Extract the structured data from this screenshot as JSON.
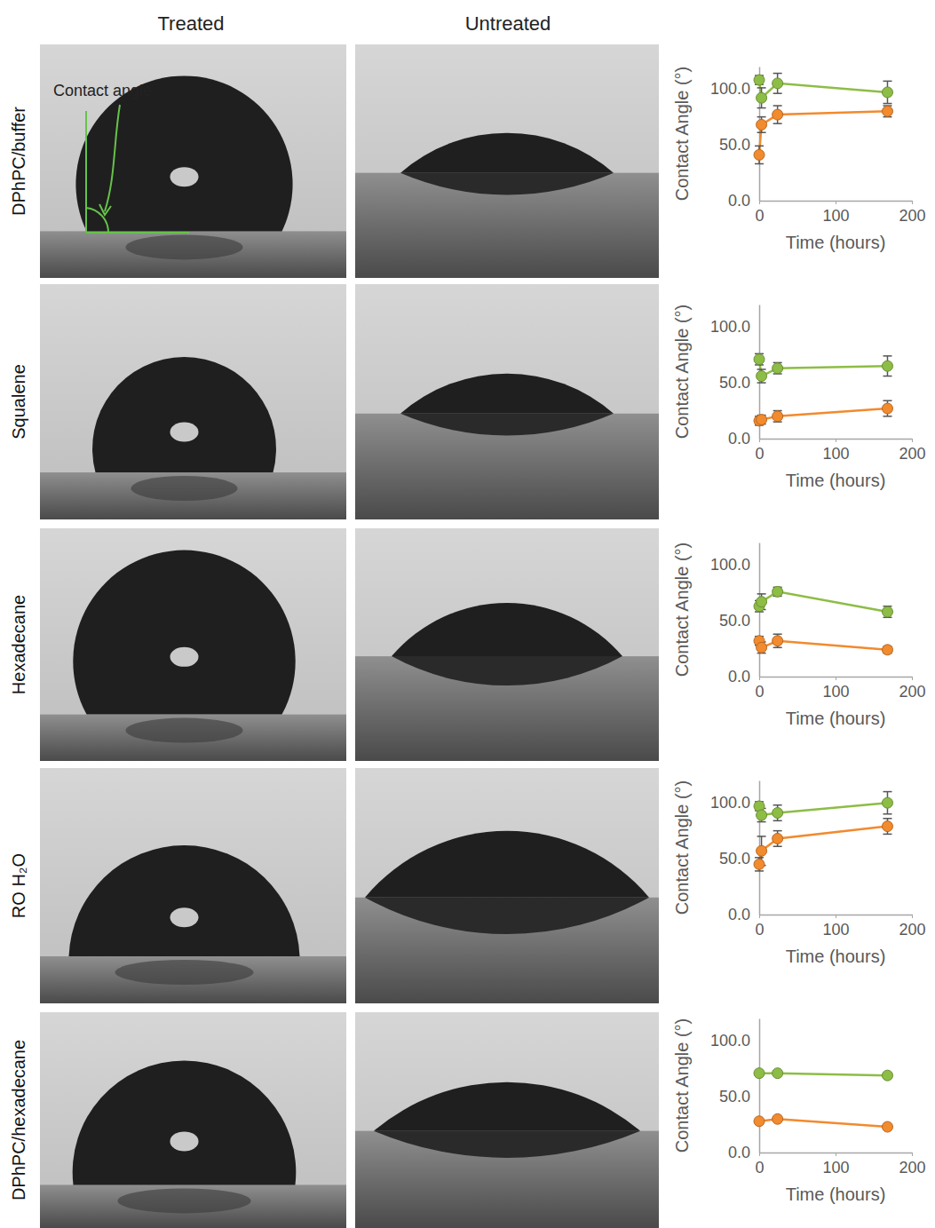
{
  "figure": {
    "columns": [
      "Treated",
      "Untreated"
    ],
    "annotation": "Contact angle"
  },
  "chart_data": [
    {
      "type": "line",
      "title": "DPhPC/buffer",
      "x_label": "Time (hours)",
      "y_label": "Contact Angle (°)",
      "x": [
        0,
        3,
        24,
        168
      ],
      "xlim": [
        0,
        200
      ],
      "xticks": [
        0,
        100,
        200
      ],
      "ylim": [
        0,
        120
      ],
      "yticks": [
        {
          "value": 0,
          "label": "0.0"
        },
        {
          "value": 50,
          "label": "50.0"
        },
        {
          "value": 100,
          "label": "100.0"
        }
      ],
      "series": [
        {
          "color": "#8dbd45",
          "marker": "circle",
          "values": [
            108,
            92,
            105,
            97
          ],
          "errors": [
            4,
            9,
            9,
            10
          ]
        },
        {
          "color": "#f28a2e",
          "marker": "circle",
          "values": [
            41,
            68,
            77,
            80
          ],
          "errors": [
            8,
            7,
            8,
            5
          ]
        }
      ]
    },
    {
      "type": "line",
      "title": "Squalene",
      "x_label": "Time (hours)",
      "y_label": "Contact Angle (°)",
      "x": [
        0,
        3,
        24,
        168
      ],
      "xlim": [
        0,
        200
      ],
      "xticks": [
        0,
        100,
        200
      ],
      "ylim": [
        0,
        120
      ],
      "yticks": [
        {
          "value": 0,
          "label": "0.0"
        },
        {
          "value": 50,
          "label": "50.0"
        },
        {
          "value": 100,
          "label": "100.0"
        }
      ],
      "series": [
        {
          "color": "#8dbd45",
          "marker": "circle",
          "values": [
            71,
            56,
            63,
            65
          ],
          "errors": [
            5,
            6,
            5,
            9
          ]
        },
        {
          "color": "#f28a2e",
          "marker": "circle",
          "values": [
            16,
            17,
            20,
            27
          ],
          "errors": [
            4,
            4,
            5,
            7
          ]
        }
      ]
    },
    {
      "type": "line",
      "title": "Hexadecane",
      "x_label": "Time (hours)",
      "y_label": "Contact Angle (°)",
      "x": [
        0,
        3,
        24,
        168
      ],
      "xlim": [
        0,
        200
      ],
      "xticks": [
        0,
        100,
        200
      ],
      "ylim": [
        0,
        120
      ],
      "yticks": [
        {
          "value": 0,
          "label": "0.0"
        },
        {
          "value": 50,
          "label": "50.0"
        },
        {
          "value": 100,
          "label": "100.0"
        }
      ],
      "series": [
        {
          "color": "#8dbd45",
          "marker": "circle",
          "values": [
            63,
            67,
            76,
            58
          ],
          "errors": [
            5,
            7,
            4,
            5
          ]
        },
        {
          "color": "#f28a2e",
          "marker": "circle",
          "values": [
            32,
            26,
            32,
            24
          ],
          "errors": [
            4,
            5,
            6,
            3
          ]
        }
      ]
    },
    {
      "type": "line",
      "title": "RO H₂O",
      "x_label": "Time (hours)",
      "y_label": "Contact Angle (°)",
      "x": [
        0,
        3,
        24,
        168
      ],
      "xlim": [
        0,
        200
      ],
      "xticks": [
        0,
        100,
        200
      ],
      "ylim": [
        0,
        120
      ],
      "yticks": [
        {
          "value": 0,
          "label": "0.0"
        },
        {
          "value": 50,
          "label": "50.0"
        },
        {
          "value": 100,
          "label": "100.0"
        }
      ],
      "series": [
        {
          "color": "#8dbd45",
          "marker": "circle",
          "values": [
            97,
            89,
            91,
            100
          ],
          "errors": [
            4,
            6,
            7,
            10
          ]
        },
        {
          "color": "#f28a2e",
          "marker": "circle",
          "values": [
            45,
            57,
            68,
            79
          ],
          "errors": [
            6,
            13,
            7,
            7
          ]
        }
      ]
    },
    {
      "type": "line",
      "title": "DPhPC/hexadecane",
      "x_label": "Time (hours)",
      "y_label": "Contact Angle (°)",
      "x": [
        0,
        24,
        168
      ],
      "xlim": [
        0,
        200
      ],
      "xticks": [
        0,
        100,
        200
      ],
      "ylim": [
        0,
        120
      ],
      "yticks": [
        {
          "value": 0,
          "label": "0.0"
        },
        {
          "value": 50,
          "label": "50.0"
        },
        {
          "value": 100,
          "label": "100.0"
        }
      ],
      "series": [
        {
          "color": "#8dbd45",
          "marker": "circle",
          "values": [
            71,
            71,
            69
          ],
          "errors": [
            2,
            2,
            2
          ]
        },
        {
          "color": "#f28a2e",
          "marker": "circle",
          "values": [
            28,
            30,
            23
          ],
          "errors": [
            1,
            1,
            1
          ]
        }
      ]
    }
  ]
}
